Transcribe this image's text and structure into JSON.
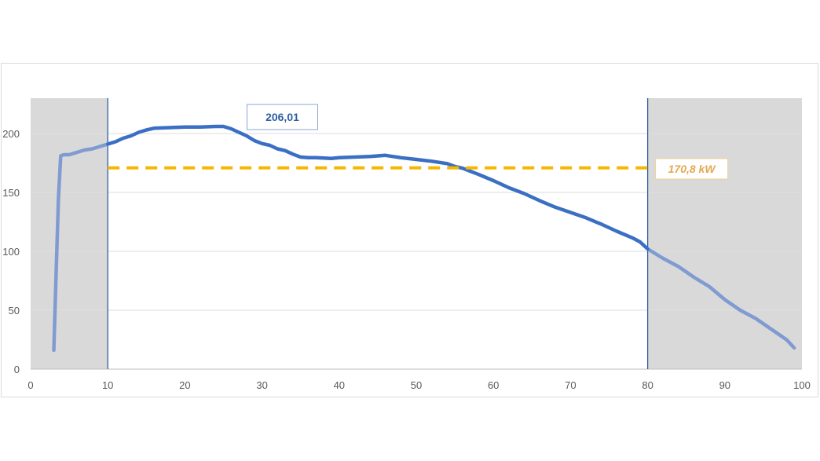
{
  "chart_data": {
    "type": "line",
    "title": "",
    "xlabel": "",
    "ylabel": "",
    "xlim": [
      0,
      100
    ],
    "ylim": [
      0,
      230
    ],
    "x_ticks": [
      0,
      10,
      20,
      30,
      40,
      50,
      60,
      70,
      80,
      90,
      100
    ],
    "y_ticks": [
      0,
      50,
      100,
      150,
      200
    ],
    "grid": "horizontal",
    "series": [
      {
        "values": [
          [
            3,
            16
          ],
          [
            3.3,
            80
          ],
          [
            3.6,
            145
          ],
          [
            3.9,
            181
          ],
          [
            4.3,
            182
          ],
          [
            5,
            182
          ],
          [
            6,
            184
          ],
          [
            7,
            186
          ],
          [
            8,
            187
          ],
          [
            9,
            189
          ],
          [
            10,
            191
          ],
          [
            11,
            193
          ],
          [
            12,
            196
          ],
          [
            13,
            198
          ],
          [
            14,
            201
          ],
          [
            15,
            203
          ],
          [
            16,
            204.5
          ],
          [
            18,
            205
          ],
          [
            20,
            205.5
          ],
          [
            22,
            205.5
          ],
          [
            24,
            206
          ],
          [
            25,
            206
          ],
          [
            26,
            204
          ],
          [
            27,
            201
          ],
          [
            28,
            198
          ],
          [
            29,
            194
          ],
          [
            30,
            191.5
          ],
          [
            31,
            190
          ],
          [
            32,
            187
          ],
          [
            33,
            185.5
          ],
          [
            34,
            182.5
          ],
          [
            35,
            180
          ],
          [
            36,
            179.5
          ],
          [
            37,
            179.5
          ],
          [
            38,
            179.2
          ],
          [
            39,
            178.8
          ],
          [
            40,
            179.5
          ],
          [
            42,
            180
          ],
          [
            44,
            180.5
          ],
          [
            45,
            181
          ],
          [
            46,
            181.5
          ],
          [
            47,
            180.5
          ],
          [
            48,
            179.5
          ],
          [
            50,
            178
          ],
          [
            52,
            176.5
          ],
          [
            54,
            174.5
          ],
          [
            55,
            172
          ],
          [
            56,
            170.5
          ],
          [
            57,
            168
          ],
          [
            58,
            165.5
          ],
          [
            60,
            160
          ],
          [
            62,
            154
          ],
          [
            64,
            149
          ],
          [
            66,
            143
          ],
          [
            68,
            137.5
          ],
          [
            70,
            133
          ],
          [
            72,
            128.5
          ],
          [
            74,
            123
          ],
          [
            76,
            117
          ],
          [
            78,
            111.5
          ],
          [
            79,
            108
          ],
          [
            80,
            102
          ],
          [
            82,
            94
          ],
          [
            84,
            87
          ],
          [
            86,
            78
          ],
          [
            88,
            70
          ],
          [
            90,
            59
          ],
          [
            92,
            50
          ],
          [
            94,
            43
          ],
          [
            96,
            34
          ],
          [
            98,
            25
          ],
          [
            99,
            18
          ]
        ]
      }
    ],
    "average_line": {
      "value": 170.8,
      "x_range": [
        10,
        80
      ],
      "color": "#f5b800"
    },
    "soc_window": {
      "start": 10,
      "end": 80
    },
    "annotations": [
      {
        "text": "206,01",
        "x": 25,
        "y": 206.01
      },
      {
        "text": "170,8 kW",
        "x": 80,
        "y": 170.8
      }
    ],
    "colors": {
      "line_inside": "#3a6fc4",
      "line_outside": "#7f9bd1",
      "shade": "#d9d9d9",
      "grid": "#dedede",
      "boundary": "#2f5fa3",
      "label_max": "#2f5fa3",
      "label_avg": "#e3a851"
    }
  }
}
